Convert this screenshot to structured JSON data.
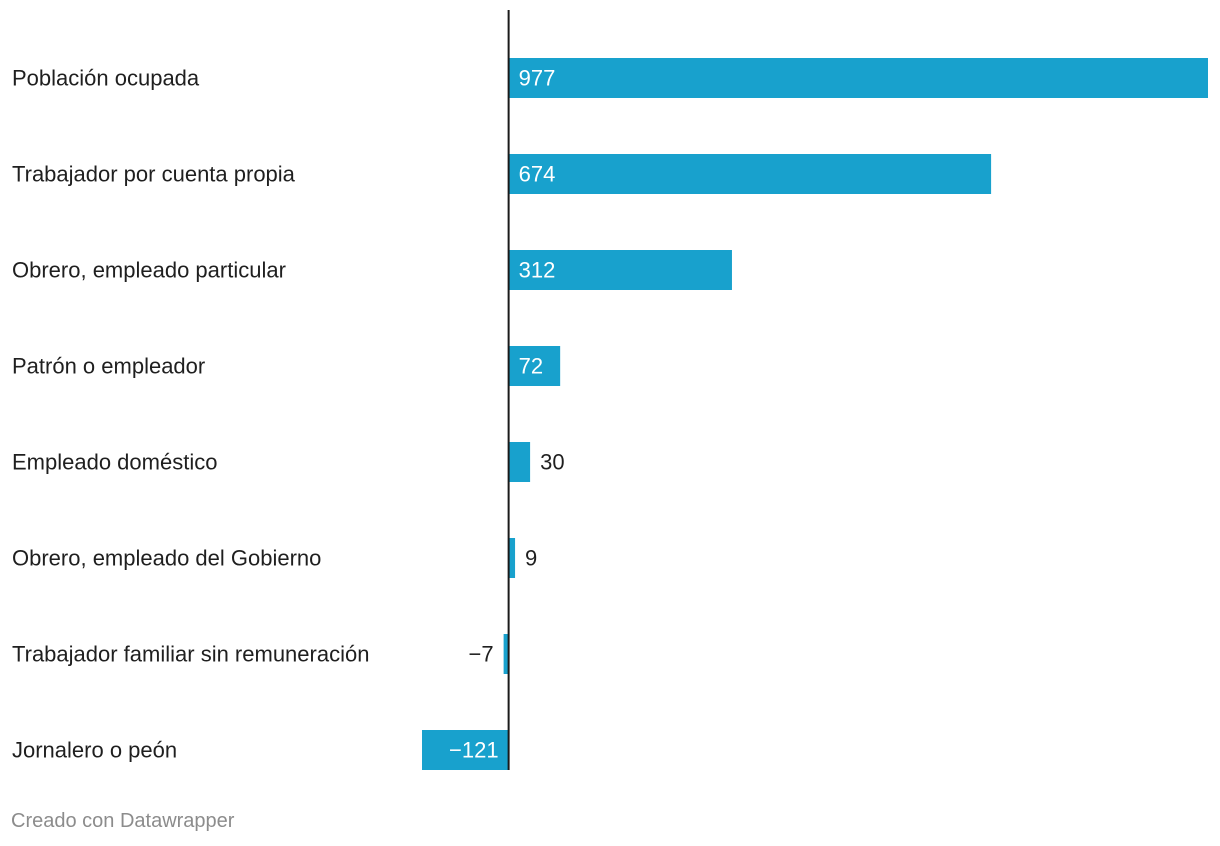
{
  "chart_data": {
    "type": "bar",
    "orientation": "horizontal",
    "categories": [
      "Población ocupada",
      "Trabajador por cuenta propia",
      "Obrero, empleado particular",
      "Patrón o empleador",
      "Empleado doméstico",
      "Obrero, empleado del Gobierno",
      "Trabajador familiar sin remuneración",
      "Jornalero o peón"
    ],
    "values": [
      977,
      674,
      312,
      72,
      30,
      9,
      -7,
      -121
    ],
    "value_labels": [
      "977",
      "674",
      "312",
      "72",
      "30",
      "9",
      "−7",
      "−121"
    ],
    "xlim": [
      -121,
      977
    ],
    "title": "",
    "xlabel": "",
    "ylabel": "",
    "grid": false,
    "bar_color": "#18a1cd",
    "label_inside_color": "#ffffff",
    "label_outside_color": "#1f1f1f"
  },
  "footer": {
    "credit": "Creado con Datawrapper"
  }
}
